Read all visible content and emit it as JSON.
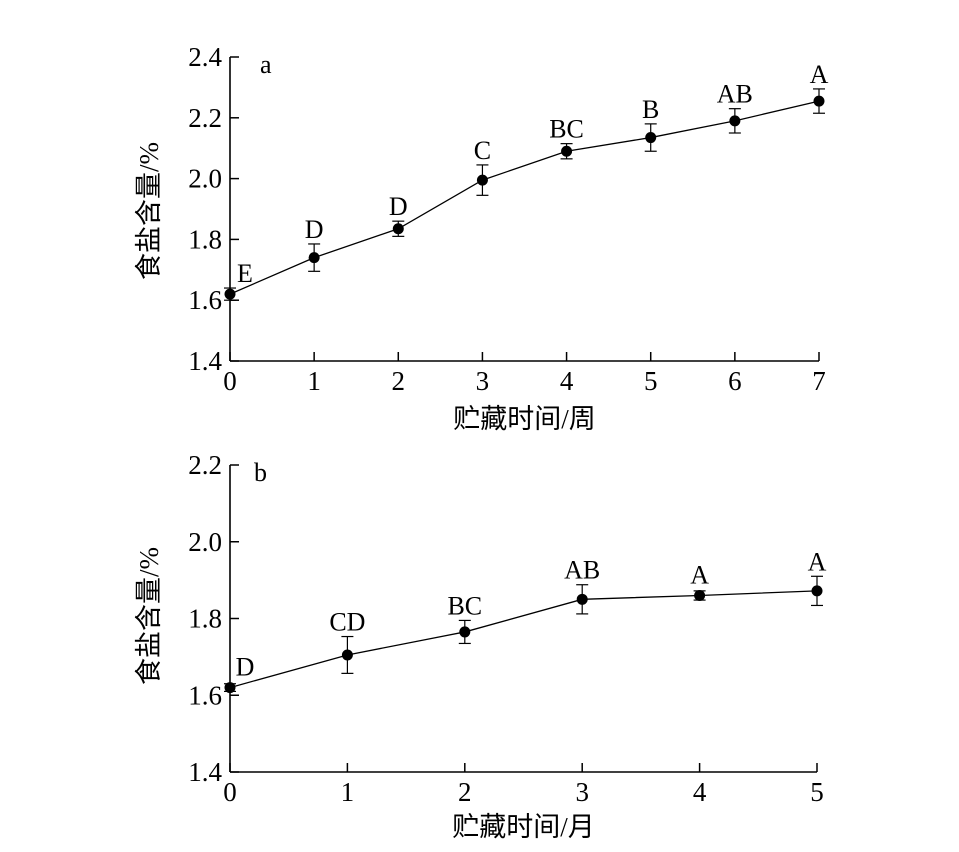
{
  "chart_data": [
    {
      "type": "line",
      "panel_label": "a",
      "xlabel": "贮藏时间/周",
      "ylabel": "食盐含量/%",
      "xlim": [
        0,
        7
      ],
      "ylim": [
        1.4,
        2.4
      ],
      "xticks": [
        0,
        1,
        2,
        3,
        4,
        5,
        6,
        7
      ],
      "yticks": [
        "1.4",
        "1.6",
        "1.8",
        "2.0",
        "2.2",
        "2.4"
      ],
      "grid": false,
      "legend": "none",
      "series": [
        {
          "x": [
            0,
            1,
            2,
            3,
            4,
            5,
            6,
            7
          ],
          "y": [
            1.62,
            1.74,
            1.835,
            1.995,
            2.09,
            2.135,
            2.19,
            2.255
          ],
          "error": [
            0.02,
            0.045,
            0.025,
            0.05,
            0.025,
            0.045,
            0.04,
            0.04
          ],
          "significance": [
            "E",
            "D",
            "D",
            "C",
            "BC",
            "B",
            "AB",
            "A"
          ]
        }
      ]
    },
    {
      "type": "line",
      "panel_label": "b",
      "xlabel": "贮藏时间/月",
      "ylabel": "食盐含量/%",
      "xlim": [
        0,
        5
      ],
      "ylim": [
        1.4,
        2.2
      ],
      "xticks": [
        0,
        1,
        2,
        3,
        4,
        5
      ],
      "yticks": [
        "1.4",
        "1.6",
        "1.8",
        "2.0",
        "2.2"
      ],
      "grid": false,
      "legend": "none",
      "series": [
        {
          "x": [
            0,
            1,
            2,
            3,
            4,
            5
          ],
          "y": [
            1.62,
            1.705,
            1.765,
            1.85,
            1.86,
            1.872
          ],
          "error": [
            0.01,
            0.048,
            0.03,
            0.038,
            0.012,
            0.038
          ],
          "significance": [
            "D",
            "CD",
            "BC",
            "AB",
            "A",
            "A"
          ]
        }
      ]
    }
  ]
}
